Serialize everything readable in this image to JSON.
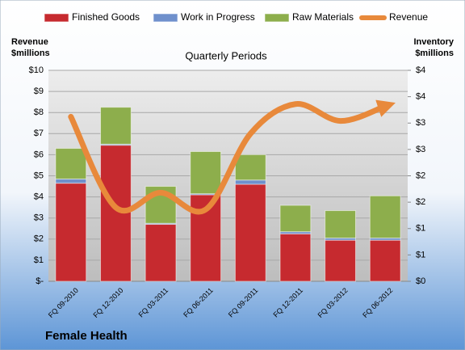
{
  "chart_data": {
    "type": "bar",
    "stacked": true,
    "title": "Quarterly Periods",
    "subtitle": "Female Health",
    "ylabel": [
      "Revenue",
      "$millions"
    ],
    "y2label": [
      "Inventory",
      "$millions"
    ],
    "categories": [
      "FQ 09-2010",
      "FQ 12-2010",
      "FQ 03-2011",
      "FQ 06-2011",
      "FQ 09-2011",
      "FQ 12-2011",
      "FQ 03-2012",
      "FQ 06-2012"
    ],
    "series": [
      {
        "name": "Finished Goods",
        "color": "#c62a2f",
        "axis": "y2",
        "type": "bar",
        "values": [
          1.86,
          2.58,
          1.08,
          1.64,
          1.84,
          0.9,
          0.78,
          0.78
        ]
      },
      {
        "name": "Work in Progress",
        "color": "#6f90cc",
        "axis": "y2",
        "type": "bar",
        "values": [
          0.08,
          0.02,
          0.02,
          0.02,
          0.08,
          0.04,
          0.04,
          0.04
        ]
      },
      {
        "name": "Raw Materials",
        "color": "#8dae4c",
        "axis": "y2",
        "type": "bar",
        "values": [
          0.58,
          0.7,
          0.7,
          0.8,
          0.48,
          0.5,
          0.52,
          0.8
        ]
      },
      {
        "name": "Revenue",
        "color": "#e8893b",
        "type": "line",
        "values": [
          7.8,
          3.5,
          4.2,
          3.4,
          7.0,
          8.4,
          7.6,
          8.3
        ]
      }
    ],
    "ylim": [
      0,
      10
    ],
    "yticks": [
      {
        "value": 0,
        "label": "$-"
      },
      {
        "value": 1,
        "label": "$1"
      },
      {
        "value": 2,
        "label": "$2"
      },
      {
        "value": 3,
        "label": "$3"
      },
      {
        "value": 4,
        "label": "$4"
      },
      {
        "value": 5,
        "label": "$5"
      },
      {
        "value": 6,
        "label": "$6"
      },
      {
        "value": 7,
        "label": "$7"
      },
      {
        "value": 8,
        "label": "$8"
      },
      {
        "value": 9,
        "label": "$9"
      },
      {
        "value": 10,
        "label": "$10"
      }
    ],
    "y2lim": [
      0,
      4
    ],
    "y2ticks": [
      {
        "value": 0,
        "label": "$0"
      },
      {
        "value": 0.5,
        "label": "$1"
      },
      {
        "value": 1,
        "label": "$1"
      },
      {
        "value": 1.5,
        "label": "$2"
      },
      {
        "value": 2,
        "label": "$2"
      },
      {
        "value": 2.5,
        "label": "$3"
      },
      {
        "value": 3,
        "label": "$3"
      },
      {
        "value": 3.5,
        "label": "$4"
      },
      {
        "value": 4,
        "label": "$4"
      }
    ],
    "grid": true
  }
}
